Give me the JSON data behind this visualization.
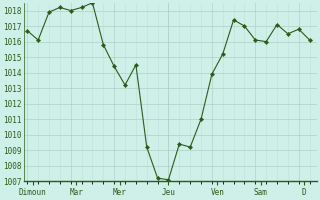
{
  "x_values": [
    0,
    1,
    2,
    3,
    4,
    5,
    6,
    7,
    8,
    9,
    10,
    11,
    12,
    13,
    14,
    15,
    16,
    17,
    18,
    19,
    20,
    21,
    22,
    23,
    24,
    25,
    26
  ],
  "y_values": [
    1016.7,
    1016.1,
    1017.9,
    1018.2,
    1018.0,
    1018.2,
    1018.5,
    1015.8,
    1014.4,
    1013.2,
    1014.5,
    1009.2,
    1007.2,
    1007.1,
    1009.4,
    1009.2,
    1011.0,
    1013.9,
    1015.2,
    1017.4,
    1017.0,
    1016.1,
    1016.0,
    1017.1,
    1016.5,
    1016.8,
    1016.1
  ],
  "x_ticks_pos": [
    0.5,
    4.5,
    8.5,
    13.0,
    17.5,
    21.5,
    25.5
  ],
  "x_tick_labels": [
    "Dimoun",
    "Mar",
    "Mer",
    "Jeu",
    "Ven",
    "Sam",
    "D"
  ],
  "x_vlines": [
    0,
    4,
    8,
    13,
    17,
    21,
    25
  ],
  "ylim_min": 1007,
  "ylim_max": 1018.5,
  "yticks": [
    1007,
    1008,
    1009,
    1010,
    1011,
    1012,
    1013,
    1014,
    1015,
    1016,
    1017,
    1018
  ],
  "line_color": "#2d5a1b",
  "marker_color": "#2d5a1b",
  "bg_color": "#cef0e8",
  "grid_color_major": "#a8c8c0",
  "grid_color_minor": "#c0e0d8",
  "fig_bg": "#cef0e8",
  "tick_label_color": "#2d5a1b",
  "spine_color": "#2d5a1b",
  "font_size_y": 5.5,
  "font_size_x": 5.5
}
